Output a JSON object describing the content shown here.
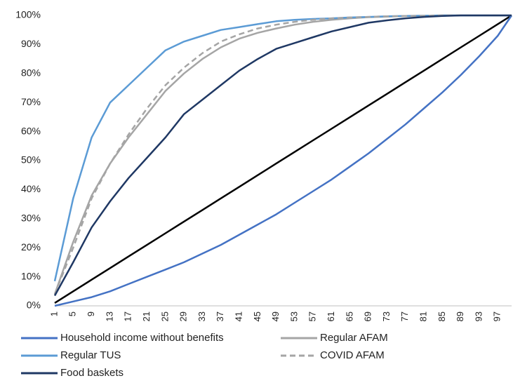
{
  "chart_data": {
    "type": "line",
    "x": [
      1,
      5,
      9,
      13,
      17,
      21,
      25,
      29,
      33,
      37,
      41,
      45,
      49,
      53,
      57,
      61,
      65,
      69,
      73,
      77,
      81,
      85,
      89,
      93,
      97,
      100
    ],
    "xlim": [
      1,
      100
    ],
    "xticks": [
      1,
      5,
      9,
      13,
      17,
      21,
      25,
      29,
      33,
      37,
      41,
      45,
      49,
      53,
      57,
      61,
      65,
      69,
      73,
      77,
      81,
      85,
      89,
      93,
      97
    ],
    "ylim": [
      0,
      100
    ],
    "yticks": [
      {
        "value": 0,
        "label": "0%"
      },
      {
        "value": 10,
        "label": "10%"
      },
      {
        "value": 20,
        "label": "20%"
      },
      {
        "value": 30,
        "label": "30%"
      },
      {
        "value": 40,
        "label": "40%"
      },
      {
        "value": 50,
        "label": "50%"
      },
      {
        "value": 60,
        "label": "60%"
      },
      {
        "value": 70,
        "label": "70%"
      },
      {
        "value": 80,
        "label": "80%"
      },
      {
        "value": 90,
        "label": "90%"
      },
      {
        "value": 100,
        "label": "100%"
      }
    ],
    "series": [
      {
        "name": "Household income without benefits",
        "color": "#4472c4",
        "dashed": false,
        "values": [
          0,
          1.5,
          3,
          5,
          7.5,
          10,
          12.5,
          15,
          18,
          21,
          24.5,
          28,
          31.5,
          35.5,
          39.5,
          43.5,
          48,
          52.5,
          57.5,
          62.5,
          68,
          73.5,
          79.5,
          86,
          93,
          100
        ]
      },
      {
        "name": "Regular AFAM",
        "color": "#a5a5a5",
        "dashed": false,
        "values": [
          4,
          22,
          38,
          49,
          58,
          66,
          74,
          80,
          85,
          89,
          92,
          94,
          95.5,
          96.8,
          97.8,
          98.5,
          99,
          99.4,
          99.6,
          99.8,
          99.9,
          100,
          100,
          100,
          100,
          100
        ]
      },
      {
        "name": "Regular TUS",
        "color": "#5b9bd5",
        "dashed": false,
        "values": [
          8.5,
          37,
          58,
          70,
          76,
          82,
          88,
          91,
          93,
          95,
          96,
          97,
          98,
          98.5,
          98.8,
          99,
          99.3,
          99.5,
          99.7,
          99.8,
          99.9,
          100,
          100,
          100,
          100,
          100
        ]
      },
      {
        "name": "COVID AFAM",
        "color": "#a5a5a5",
        "dashed": true,
        "values": [
          4,
          20,
          37,
          49,
          59,
          68,
          76,
          82,
          87,
          91,
          93.5,
          95.5,
          96.8,
          97.8,
          98.5,
          99,
          99.3,
          99.5,
          99.7,
          99.8,
          99.9,
          100,
          100,
          100,
          100,
          100
        ]
      },
      {
        "name": "Food baskets",
        "color": "#1f3864",
        "dashed": false,
        "values": [
          3.5,
          15,
          27,
          36,
          44,
          51,
          58,
          66,
          71,
          76,
          81,
          85,
          88.5,
          90.5,
          92.5,
          94.5,
          96,
          97.5,
          98.3,
          99,
          99.5,
          99.8,
          100,
          100,
          100,
          100
        ]
      }
    ],
    "equality_line": {
      "color": "#000000",
      "values": [
        1,
        5,
        9,
        13,
        17,
        21,
        25,
        29,
        33,
        37,
        41,
        45,
        49,
        53,
        57,
        61,
        65,
        69,
        73,
        77,
        81,
        85,
        89,
        93,
        97,
        100
      ]
    }
  }
}
